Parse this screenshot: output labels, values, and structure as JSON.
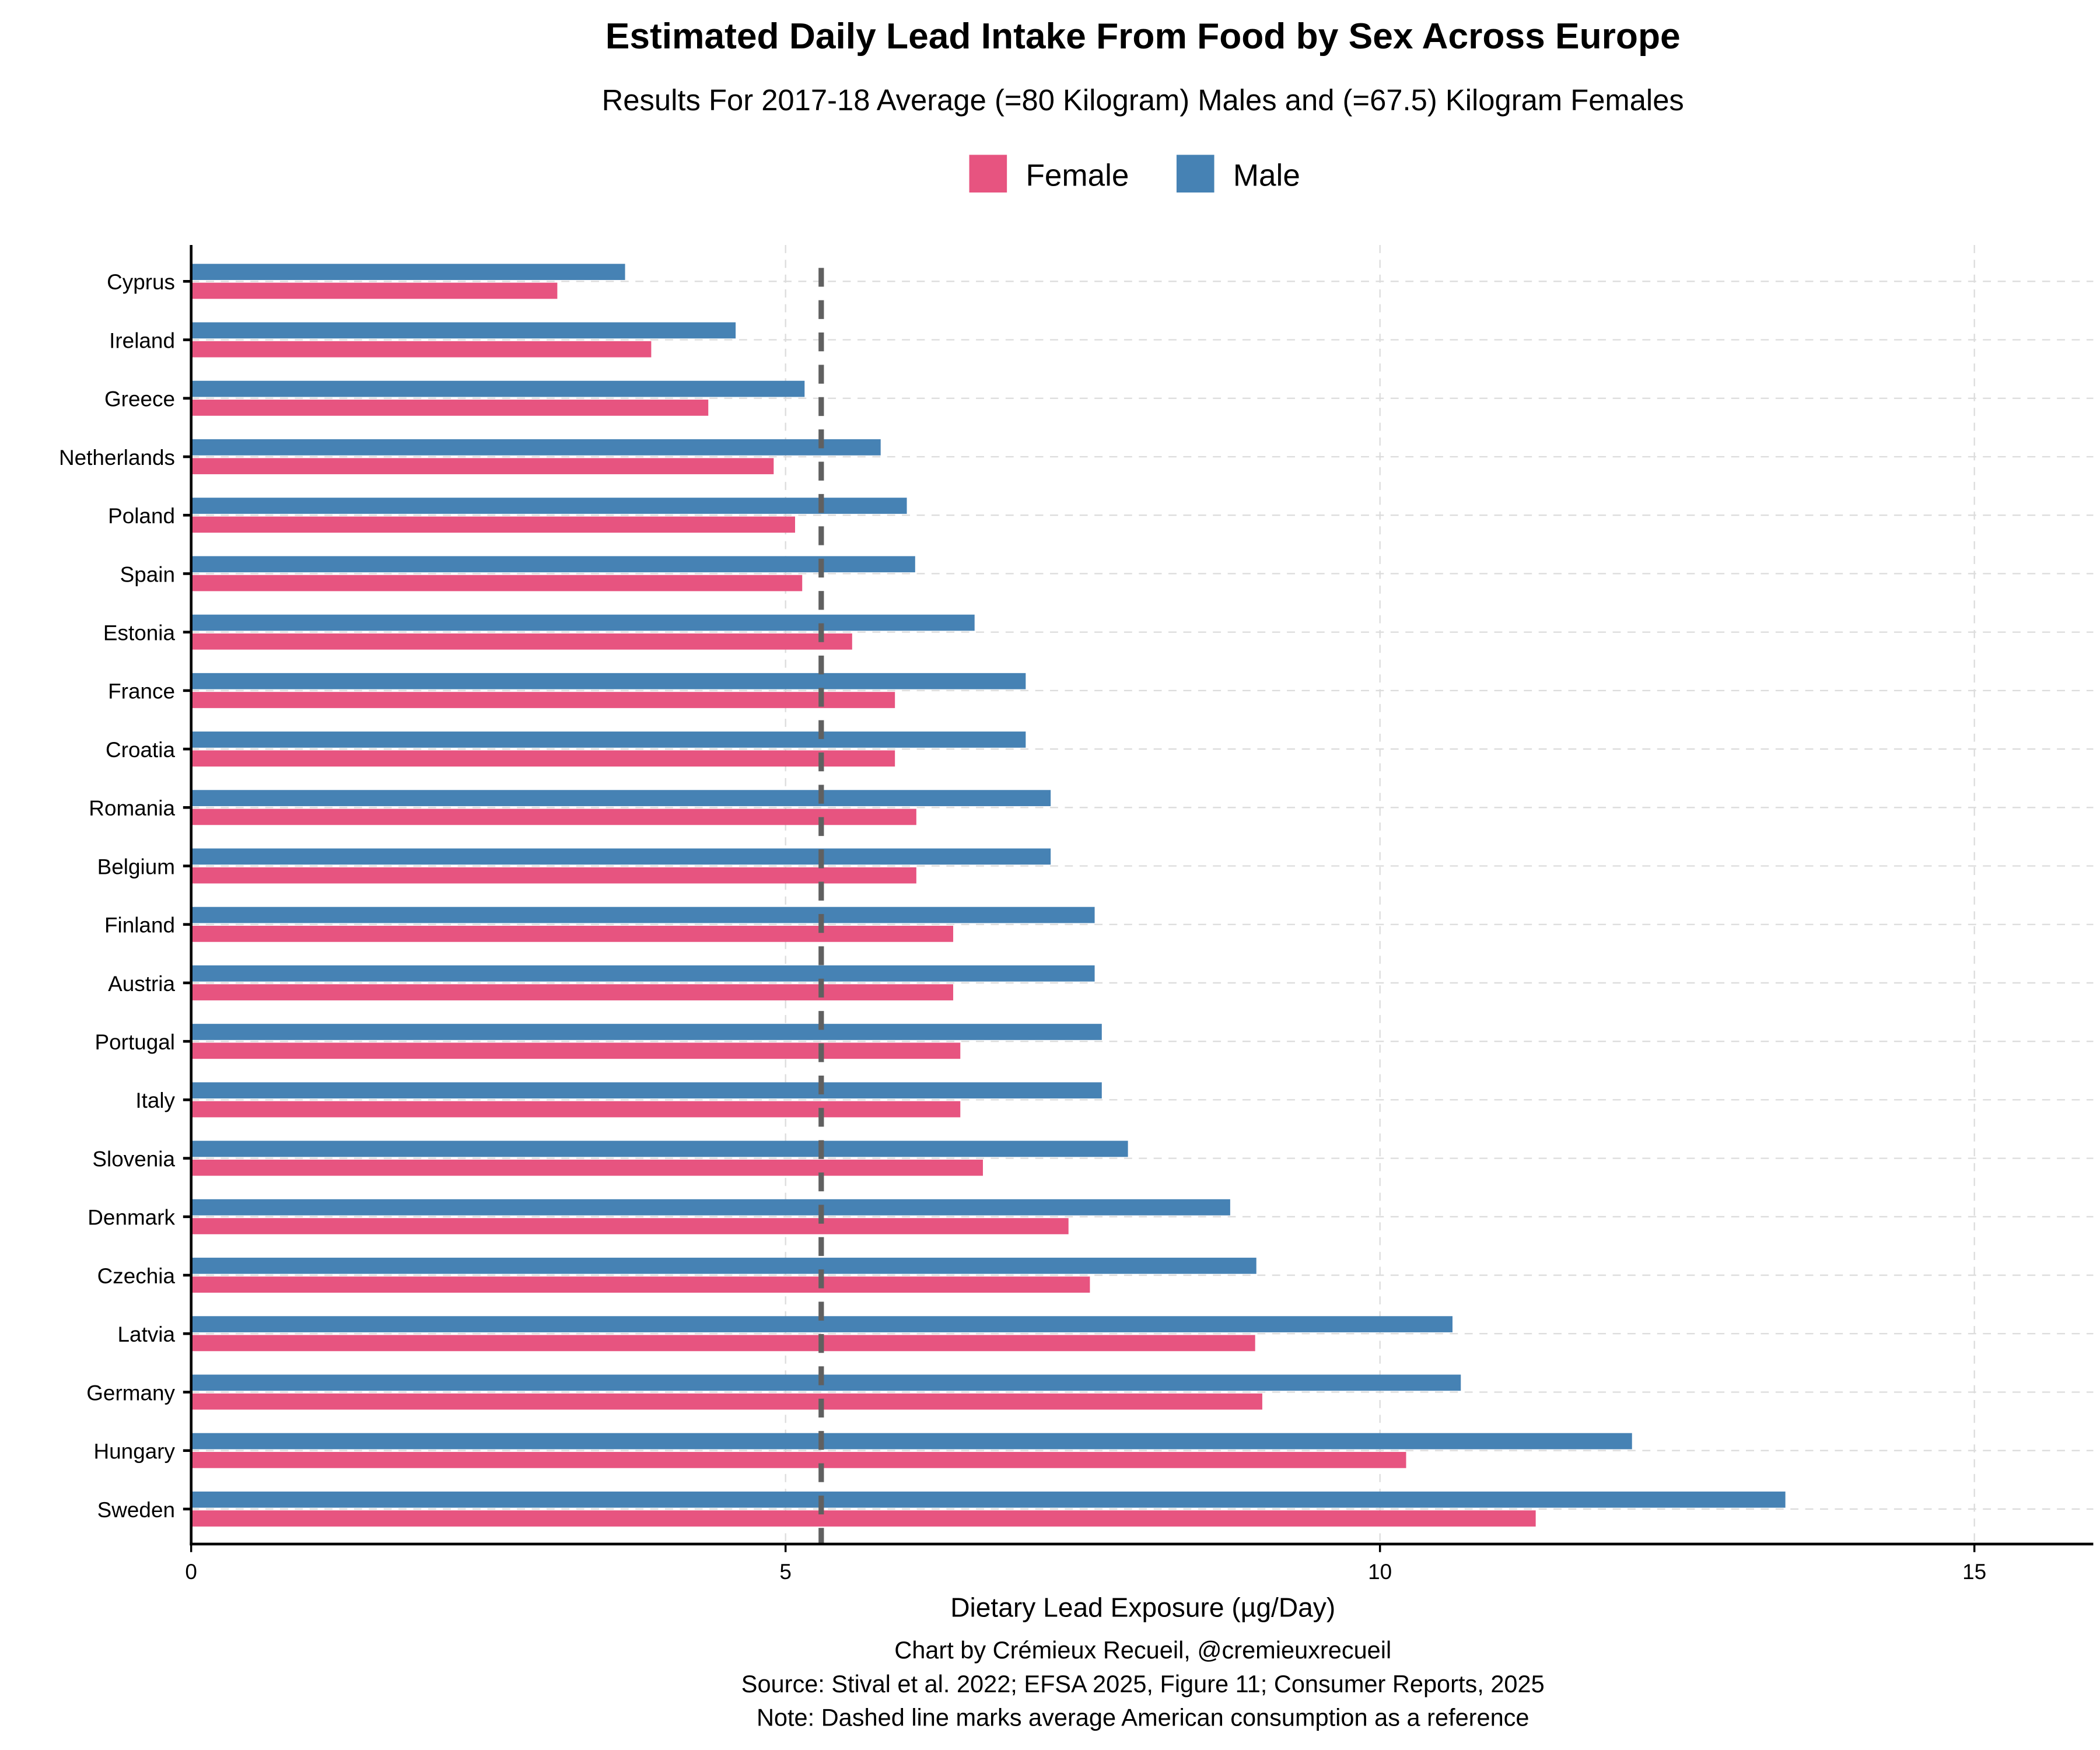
{
  "chart_data": {
    "type": "bar",
    "orientation": "horizontal",
    "title": "Estimated Daily Lead Intake From Food by Sex Across Europe",
    "subtitle": "Results For 2017-18 Average (=80 Kilogram) Males and (=67.5) Kilogram Females",
    "xlabel": "Dietary Lead Exposure (µg/Day)",
    "ylabel": "",
    "xlim": [
      0,
      16
    ],
    "xticks": [
      0,
      5,
      10,
      15
    ],
    "grid": true,
    "legend_position": "top-center",
    "reference_line": {
      "value": 5.3,
      "style": "dashed",
      "color": "#606060"
    },
    "categories": [
      "Cyprus",
      "Ireland",
      "Greece",
      "Netherlands",
      "Poland",
      "Spain",
      "Estonia",
      "France",
      "Croatia",
      "Romania",
      "Belgium",
      "Finland",
      "Austria",
      "Portugal",
      "Italy",
      "Slovenia",
      "Denmark",
      "Czechia",
      "Latvia",
      "Germany",
      "Hungary",
      "Sweden"
    ],
    "series": [
      {
        "name": "Female",
        "color": "#E75480",
        "values": [
          3.08,
          3.87,
          4.35,
          4.9,
          5.08,
          5.14,
          5.56,
          5.92,
          5.92,
          6.1,
          6.1,
          6.41,
          6.41,
          6.47,
          6.47,
          6.66,
          7.38,
          7.56,
          8.95,
          9.01,
          10.22,
          11.31
        ]
      },
      {
        "name": "Male",
        "color": "#4682B4",
        "values": [
          3.65,
          4.58,
          5.16,
          5.8,
          6.02,
          6.09,
          6.59,
          7.02,
          7.02,
          7.23,
          7.23,
          7.6,
          7.6,
          7.66,
          7.66,
          7.88,
          8.74,
          8.96,
          10.61,
          10.68,
          12.12,
          13.41
        ]
      }
    ],
    "caption": [
      "Chart by Crémieux Recueil, @cremieuxrecueil",
      "Source: Stival et al. 2022; EFSA 2025, Figure 11; Consumer Reports, 2025",
      "Note: Dashed line marks average American consumption as a reference"
    ]
  }
}
